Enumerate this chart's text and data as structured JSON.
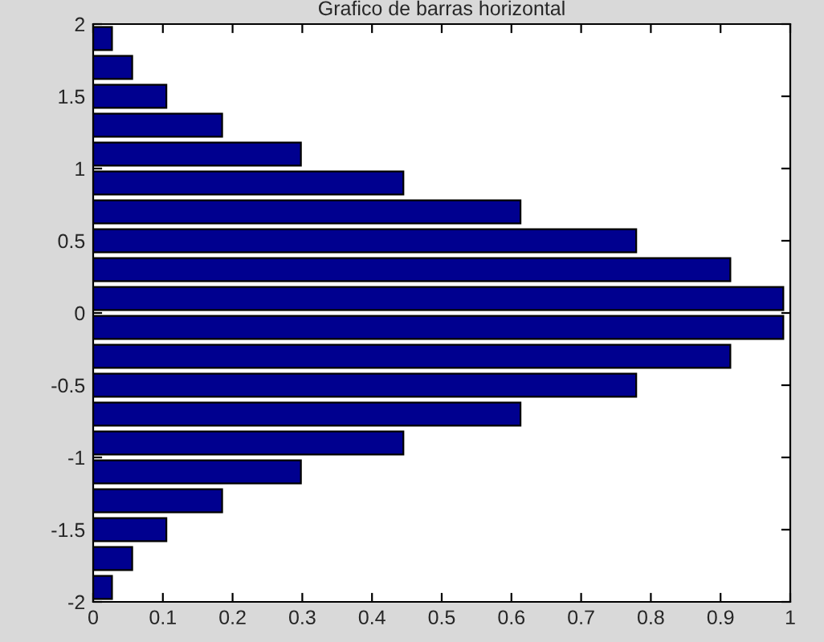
{
  "chart_data": {
    "type": "bar",
    "orientation": "horizontal",
    "title": "Grafico de barras horizontal",
    "x": [
      -1.9,
      -1.7,
      -1.5,
      -1.3,
      -1.1,
      -0.9,
      -0.7,
      -0.5,
      -0.3,
      -0.1,
      0.1,
      0.3,
      0.5,
      0.7,
      0.9,
      1.1,
      1.3,
      1.5,
      1.7,
      1.9
    ],
    "values": [
      0.027,
      0.056,
      0.105,
      0.185,
      0.298,
      0.445,
      0.613,
      0.779,
      0.914,
      0.99,
      0.99,
      0.914,
      0.779,
      0.613,
      0.445,
      0.298,
      0.185,
      0.105,
      0.056,
      0.027
    ],
    "color": "#00008f",
    "xlim": [
      0,
      1
    ],
    "xticks": [
      0,
      0.1,
      0.2,
      0.3,
      0.4,
      0.5,
      0.6,
      0.7,
      0.8,
      0.9,
      1
    ],
    "ylim": [
      -2,
      2
    ],
    "yticks": [
      -2,
      -1.5,
      -1,
      -0.5,
      0,
      0.5,
      1,
      1.5,
      2
    ],
    "grid": false,
    "legend": false
  }
}
